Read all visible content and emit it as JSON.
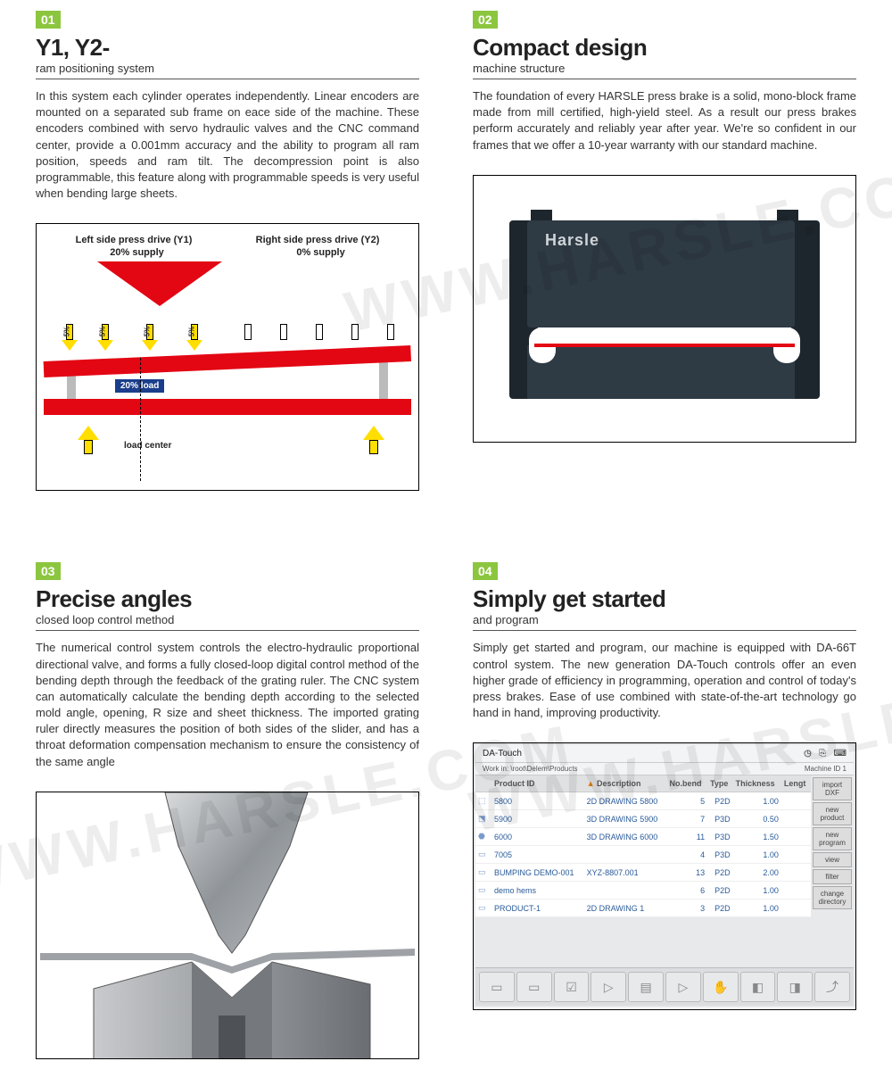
{
  "colors": {
    "accent": "#8cc63f",
    "red": "#e30613",
    "yellow": "#ffde00",
    "steel": "#2e3a44",
    "steel_dark": "#1e262d",
    "link": "#2a5b9a",
    "watermark": "WWW.HARSLE.COM"
  },
  "panels": [
    {
      "num": "01",
      "title": "Y1, Y2-",
      "subtitle": "ram positioning system",
      "body": "In this system each cylinder operates independently. Linear encoders are mounted on a separated sub frame on eace side of the machine. These encoders combined with servo hydraulic valves and the CNC command center, provide a 0.001mm accuracy and the ability to program all ram position, speeds and ram tilt. The decompression point is also programmable, this feature along with programmable speeds is very useful when bending large sheets.",
      "diagram": {
        "left_label": "Left side press drive (Y1)",
        "right_label": "Right side press drive (Y2)",
        "left_supply": "20% supply",
        "right_supply": "0% supply",
        "small_pct": "5%",
        "load_label": "20% load",
        "load_center": "load center"
      }
    },
    {
      "num": "02",
      "title": "Compact design",
      "subtitle": "machine structure",
      "body": "The foundation of every HARSLE press brake is a solid, mono-block frame made from mill certified, high-yield steel. As a result our press brakes perform accurately and reliably year after year. We're so confident in our frames that we offer a 10-year warranty with our standard machine.",
      "machine_logo": "Harsle"
    },
    {
      "num": "03",
      "title": "Precise angles",
      "subtitle": "closed loop control method",
      "body": "The numerical control system controls the electro-hydraulic proportional directional valve, and forms a fully closed-loop digital control method of the bending depth through the feedback of the grating ruler. The CNC system can automatically calculate the bending depth according to the selected mold angle, opening, R size and sheet thickness. The imported grating ruler directly measures the position of both sides of the slider, and has a throat deformation compensation mechanism to ensure the consistency of the same angle"
    },
    {
      "num": "04",
      "title": "Simply get started",
      "subtitle": "and program",
      "body": "Simply get started and program, our machine is equipped with DA-66T control system. The new generation DA-Touch controls offer an even higher grade of efficiency in programming, operation and control of today's press brakes. Ease of use combined with state-of-the-art technology go hand in hand, improving productivity.",
      "ui": {
        "header": "DA-Touch",
        "subheader_left": "Work in: \\root\\Delem\\Products",
        "subheader_right": "Machine ID 1",
        "columns": [
          "",
          "Product ID",
          "Description",
          "No.bend",
          "Type",
          "Thickness",
          "Lengt"
        ],
        "rows": [
          [
            "5800",
            "2D DRAWING 5800",
            "5",
            "P2D",
            "1.00"
          ],
          [
            "5900",
            "3D DRAWING 5900",
            "7",
            "P3D",
            "0.50"
          ],
          [
            "6000",
            "3D DRAWING 6000",
            "11",
            "P3D",
            "1.50"
          ],
          [
            "7005",
            "",
            "4",
            "P3D",
            "1.00"
          ],
          [
            "BUMPING DEMO-001",
            "XYZ-8807.001",
            "13",
            "P2D",
            "2.00"
          ],
          [
            "demo hems",
            "",
            "6",
            "P2D",
            "1.00"
          ],
          [
            "PRODUCT-1",
            "2D DRAWING 1",
            "3",
            "P2D",
            "1.00"
          ]
        ],
        "side_buttons": [
          "import DXF",
          "new product",
          "new program",
          "view",
          "filter",
          "change directory"
        ],
        "triangle_col": "▲"
      }
    }
  ]
}
